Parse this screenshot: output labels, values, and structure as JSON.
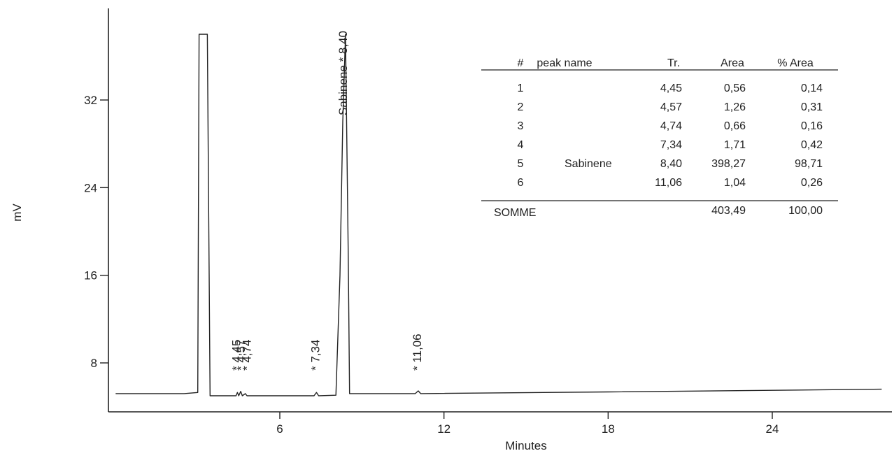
{
  "chart_data": {
    "type": "line",
    "xlabel": "Minutes",
    "ylabel": "mV",
    "xlim": [
      0,
      28
    ],
    "ylim": [
      0,
      38
    ],
    "x_ticks": [
      6,
      12,
      18,
      24
    ],
    "x_tick_labels": [
      "6",
      "12",
      "18",
      "24"
    ],
    "y_ticks": [
      8,
      16,
      24,
      32
    ],
    "y_tick_labels": [
      "8",
      "16",
      "24",
      "32"
    ],
    "grid": false,
    "series": [
      {
        "points": [
          [
            0,
            5.2
          ],
          [
            2.5,
            5.2
          ],
          [
            3.0,
            5.3
          ],
          [
            3.05,
            38
          ],
          [
            3.35,
            38
          ],
          [
            3.45,
            5.0
          ],
          [
            4.4,
            5.0
          ],
          [
            4.45,
            5.3
          ],
          [
            4.5,
            5.0
          ],
          [
            4.57,
            5.4
          ],
          [
            4.63,
            5.0
          ],
          [
            4.74,
            5.2
          ],
          [
            4.8,
            5.0
          ],
          [
            7.25,
            5.0
          ],
          [
            7.34,
            5.3
          ],
          [
            7.42,
            5.0
          ],
          [
            8.05,
            5.05
          ],
          [
            8.2,
            16
          ],
          [
            8.3,
            30
          ],
          [
            8.4,
            38
          ],
          [
            8.5,
            18
          ],
          [
            8.55,
            5.2
          ],
          [
            10.95,
            5.2
          ],
          [
            11.06,
            5.45
          ],
          [
            11.15,
            5.2
          ],
          [
            18,
            5.35
          ],
          [
            24,
            5.5
          ],
          [
            28,
            5.6
          ]
        ]
      }
    ],
    "peak_labels": [
      {
        "x": 4.45,
        "text": "* 4,45"
      },
      {
        "x": 4.57,
        "text": "* 4,57"
      },
      {
        "x": 4.74,
        "text": "* 4,74"
      },
      {
        "x": 7.34,
        "text": "* 7,34"
      },
      {
        "x": 8.4,
        "text": "Sabinene * 8,40"
      },
      {
        "x": 11.06,
        "text": "* 11,06"
      }
    ]
  },
  "results_table": {
    "headers": [
      "#",
      "peak name",
      "Tr.",
      "Area",
      "% Area"
    ],
    "rows": [
      [
        "1",
        "",
        "4,45",
        "0,56",
        "0,14"
      ],
      [
        "2",
        "",
        "4,57",
        "1,26",
        "0,31"
      ],
      [
        "3",
        "",
        "4,74",
        "0,66",
        "0,16"
      ],
      [
        "4",
        "",
        "7,34",
        "1,71",
        "0,42"
      ],
      [
        "5",
        "Sabinene",
        "8,40",
        "398,27",
        "98,71"
      ],
      [
        "6",
        "",
        "11,06",
        "1,04",
        "0,26"
      ]
    ],
    "total": [
      "SOMME",
      "",
      "",
      "403,49",
      "100,00"
    ]
  }
}
